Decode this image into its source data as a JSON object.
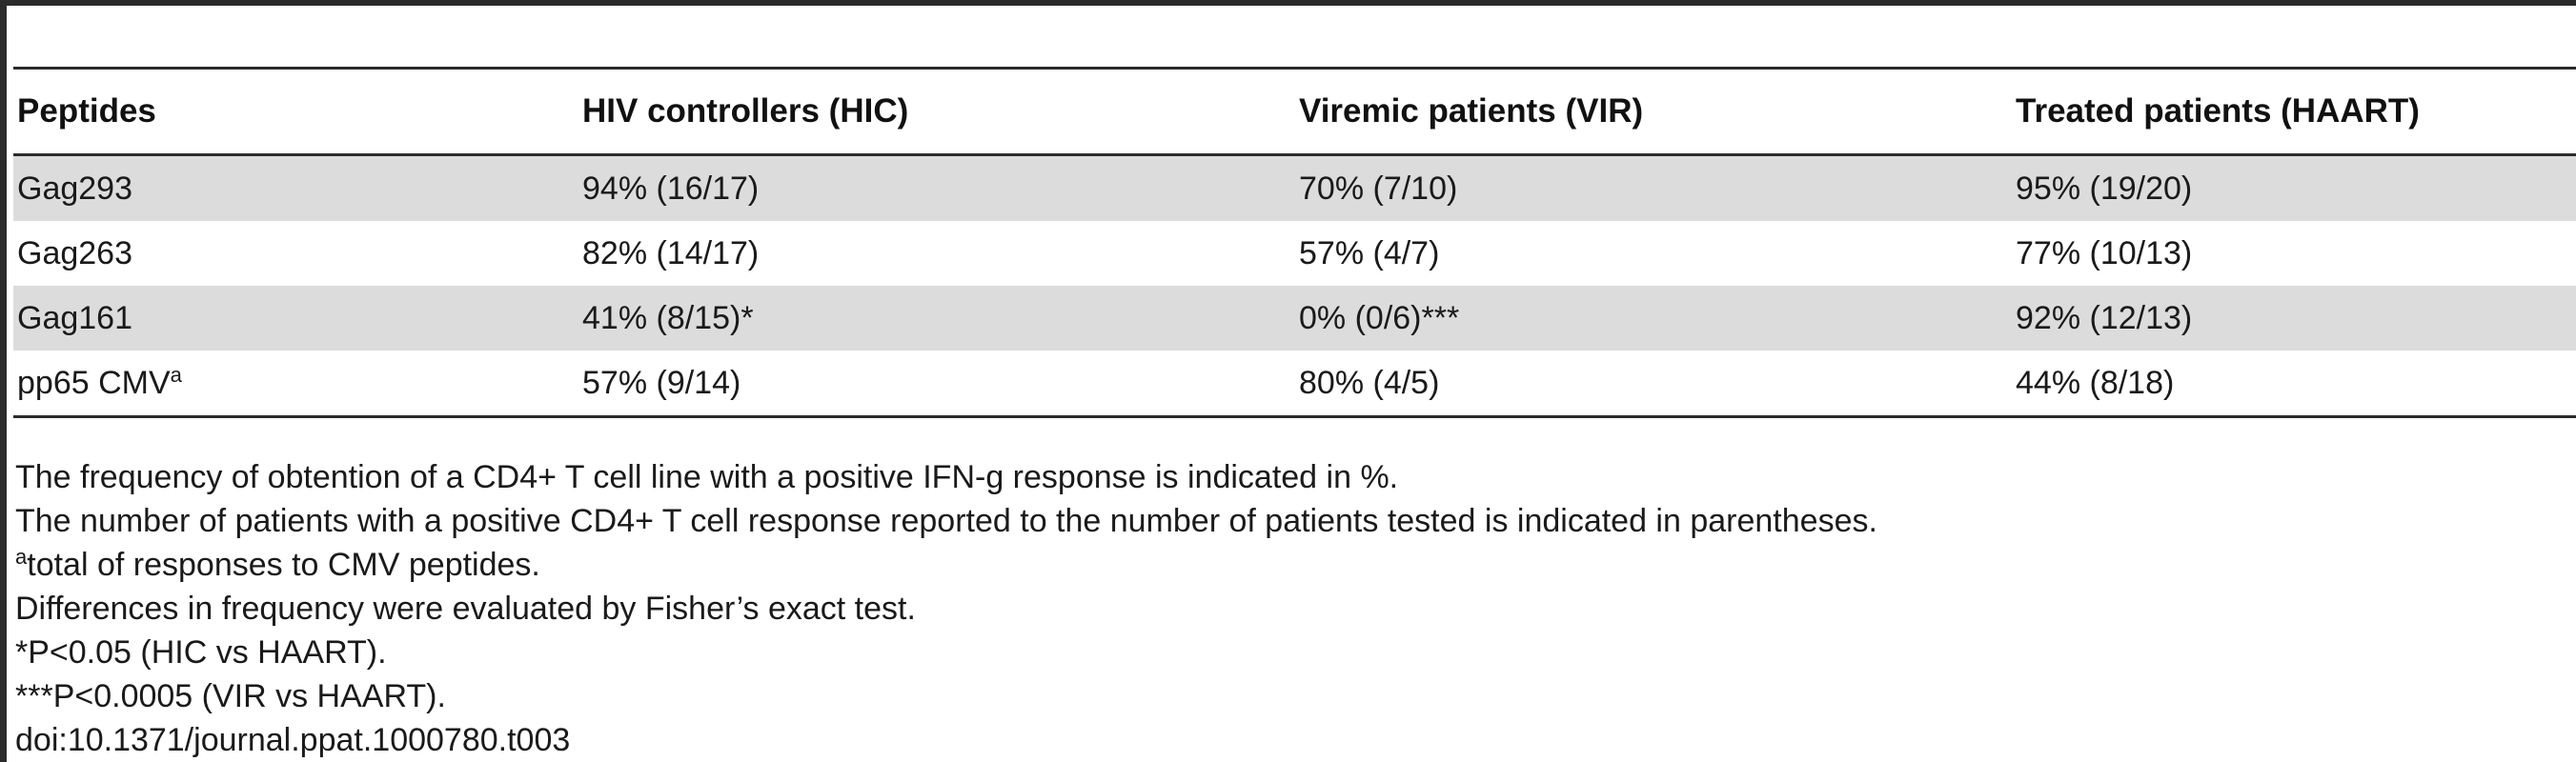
{
  "table": {
    "headers": [
      "Peptides",
      "HIV controllers (HIC)",
      "Viremic patients (VIR)",
      "Treated patients (HAART)"
    ],
    "rows": [
      {
        "peptide": "Gag293",
        "sup": "",
        "hic": "94% (16/17)",
        "vir": "70% (7/10)",
        "haart": "95% (19/20)"
      },
      {
        "peptide": "Gag263",
        "sup": "",
        "hic": "82% (14/17)",
        "vir": "57% (4/7)",
        "haart": "77% (10/13)"
      },
      {
        "peptide": "Gag161",
        "sup": "",
        "hic": "41% (8/15)*",
        "vir": "0% (0/6)***",
        "haart": "92% (12/13)"
      },
      {
        "peptide": "pp65 CMV",
        "sup": "a",
        "hic": "57% (9/14)",
        "vir": "80% (4/5)",
        "haart": "44% (8/18)"
      }
    ]
  },
  "footnotes": {
    "line1": "The frequency of obtention of a CD4+ T cell line with a positive IFN-g response is indicated in %.",
    "line2": "The number of patients with a positive CD4+ T cell response reported to the number of patients tested is indicated in parentheses.",
    "line3_sup": "a",
    "line3": "total of responses to CMV peptides.",
    "line4": "Differences in frequency were evaluated by Fisher’s exact test.",
    "line5": "*P<0.05 (HIC vs HAART).",
    "line6": "***P<0.0005 (VIR vs HAART).",
    "doi": "doi:10.1371/journal.ppat.1000780.t003"
  }
}
